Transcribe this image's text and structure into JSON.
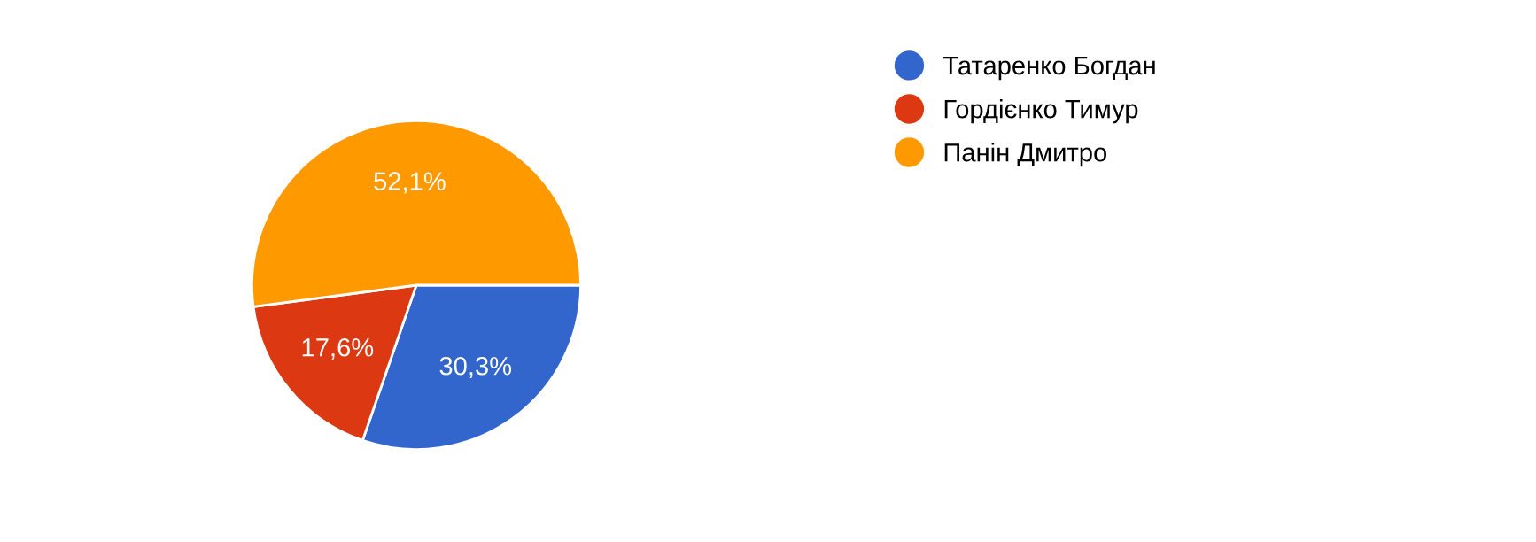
{
  "chart_data": {
    "type": "pie",
    "categories": [
      "Татаренко Богдан",
      "Гордієнко Тимур",
      "Панін Дмитро"
    ],
    "values": [
      30.3,
      17.6,
      52.1
    ],
    "colors": [
      "#3366cc",
      "#dc3912",
      "#ff9900"
    ],
    "value_labels": [
      "30,3%",
      "17,6%",
      "52,1%"
    ],
    "legend": "top right"
  }
}
